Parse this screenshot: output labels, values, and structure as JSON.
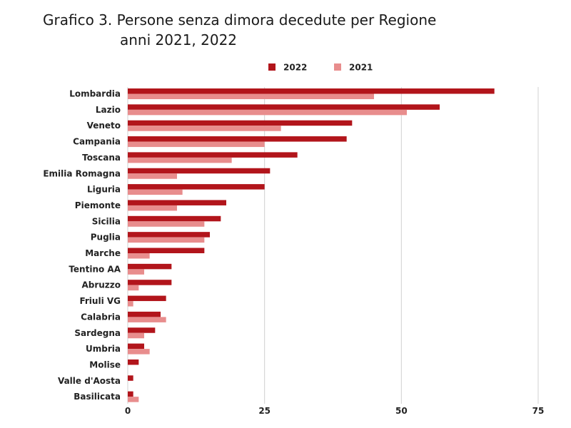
{
  "title": {
    "line1": "Grafico 3.  Persone senza dimora decedute per Regione",
    "line2": "anni 2021, 2022"
  },
  "chart_data": {
    "type": "bar",
    "orientation": "horizontal",
    "categories": [
      "Lombardia",
      "Lazio",
      "Veneto",
      "Campania",
      "Toscana",
      "Emilia Romagna",
      "Liguria",
      "Piemonte",
      "Sicilia",
      "Puglia",
      "Marche",
      "Tentino AA",
      "Abruzzo",
      "Friuli VG",
      "Calabria",
      "Sardegna",
      "Umbria",
      "Molise",
      "Valle d'Aosta",
      "Basilicata"
    ],
    "series": [
      {
        "name": "2022",
        "color": "#b2151b",
        "values": [
          67,
          57,
          41,
          40,
          31,
          26,
          25,
          18,
          17,
          15,
          14,
          8,
          8,
          7,
          6,
          5,
          3,
          2,
          1,
          1
        ]
      },
      {
        "name": "2021",
        "color": "#e88d8d",
        "values": [
          45,
          51,
          28,
          25,
          19,
          9,
          10,
          9,
          14,
          14,
          4,
          3,
          2,
          1,
          7,
          3,
          4,
          0,
          0,
          2
        ]
      }
    ],
    "xlim": [
      0,
      75
    ],
    "xticks": [
      "0",
      "25",
      "50",
      "75"
    ],
    "grid": true,
    "legend_position": "top"
  }
}
